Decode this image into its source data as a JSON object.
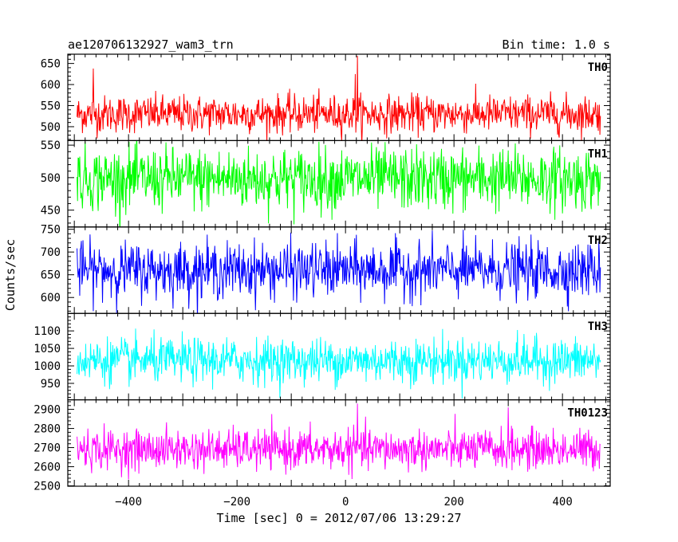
{
  "chart_data": {
    "type": "line",
    "title_left": "ae120706132927_wam3_trn",
    "title_right": "Bin time: 1.0 s",
    "xlabel": "Time [sec] 0 = 2012/07/06 13:29:27",
    "ylabel": "Counts/sec",
    "xlim": [
      -512,
      488
    ],
    "xticks": [
      -400,
      -200,
      0,
      200,
      400
    ],
    "x_range": [
      -495,
      470
    ],
    "bin": 1.0,
    "panels": [
      {
        "label": "TH0",
        "color": "#ff0000",
        "ylim": [
          467,
          672
        ],
        "yticks": [
          500,
          550,
          600,
          650
        ],
        "mean": 530,
        "sigma": 22,
        "spikes": [
          {
            "x": 22,
            "y": 668
          },
          {
            "x": 18,
            "y": 625
          },
          {
            "x": -465,
            "y": 638
          }
        ]
      },
      {
        "label": "TH1",
        "color": "#00ff00",
        "ylim": [
          424,
          557
        ],
        "yticks": [
          450,
          500,
          550
        ],
        "mean": 498,
        "sigma": 24
      },
      {
        "label": "TH2",
        "color": "#0000ff",
        "ylim": [
          565,
          755
        ],
        "yticks": [
          600,
          650,
          700,
          750
        ],
        "mean": 660,
        "sigma": 30
      },
      {
        "label": "TH3",
        "color": "#00ffff",
        "ylim": [
          903,
          1150
        ],
        "yticks": [
          950,
          1000,
          1050,
          1100
        ],
        "mean": 1015,
        "sigma": 32
      },
      {
        "label": "TH0123",
        "color": "#ff00ff",
        "ylim": [
          2498,
          2950
        ],
        "yticks": [
          2500,
          2600,
          2700,
          2800,
          2900
        ],
        "mean": 2690,
        "sigma": 52,
        "spikes": [
          {
            "x": 22,
            "y": 2930
          },
          {
            "x": 300,
            "y": 2910
          }
        ]
      }
    ]
  }
}
